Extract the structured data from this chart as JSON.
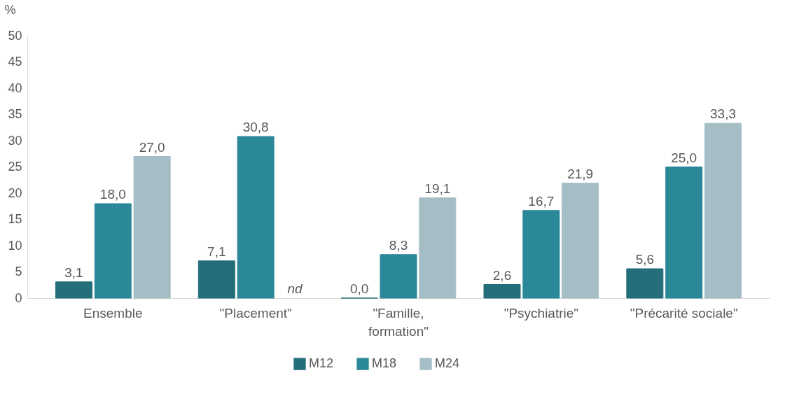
{
  "chart_data": {
    "type": "bar",
    "ylabel": "%",
    "categories": [
      "Ensemble",
      "\"Placement\"",
      "\"Famille,\nformation\"",
      "\"Psychiatrie\"",
      "\"Précarité sociale\""
    ],
    "series": [
      {
        "name": "M12",
        "color": "#236e7a",
        "values": [
          3.1,
          7.1,
          0.0,
          2.6,
          5.6
        ],
        "value_labels": [
          "3,1",
          "7,1",
          "0,0",
          "2,6",
          "5,6"
        ]
      },
      {
        "name": "M18",
        "color": "#2a8898",
        "values": [
          18.0,
          30.8,
          8.3,
          16.7,
          25.0
        ],
        "value_labels": [
          "18,0",
          "30,8",
          "8,3",
          "16,7",
          "25,0"
        ]
      },
      {
        "name": "M24",
        "color": "#a5bdc5",
        "values": [
          27.0,
          null,
          19.1,
          21.9,
          33.3
        ],
        "value_labels": [
          "27,0",
          "nd",
          "19,1",
          "21,9",
          "33,3"
        ]
      }
    ],
    "ylim": [
      0,
      50
    ],
    "yticks": [
      0,
      5,
      10,
      15,
      20,
      25,
      30,
      35,
      40,
      45,
      50
    ],
    "grid": false,
    "legend": "bottom"
  }
}
